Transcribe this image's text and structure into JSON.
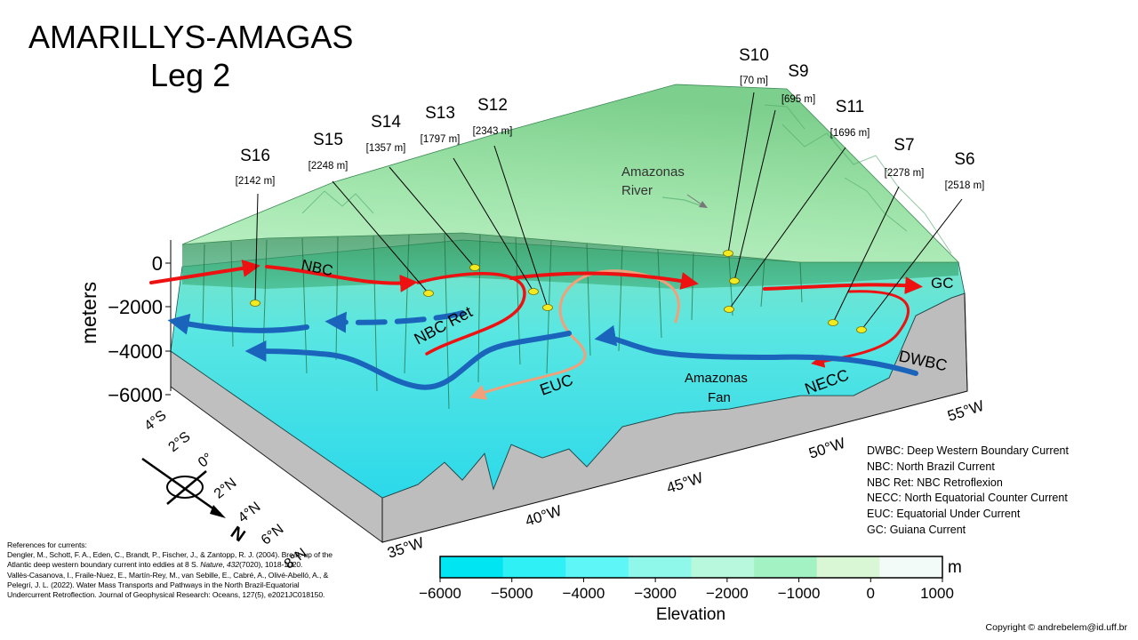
{
  "title": {
    "line1": "AMARILLYS-AMAGAS",
    "line2": "Leg 2"
  },
  "stations": [
    {
      "name": "S16",
      "depth": "[2142 m]"
    },
    {
      "name": "S15",
      "depth": "[2248 m]"
    },
    {
      "name": "S14",
      "depth": "[1357 m]"
    },
    {
      "name": "S13",
      "depth": "[1797 m]"
    },
    {
      "name": "S12",
      "depth": "[2343 m]"
    },
    {
      "name": "S10",
      "depth": "[70 m]"
    },
    {
      "name": "S9",
      "depth": "[695 m]"
    },
    {
      "name": "S11",
      "depth": "[1696 m]"
    },
    {
      "name": "S7",
      "depth": "[2278 m]"
    },
    {
      "name": "S6",
      "depth": "[2518 m]"
    }
  ],
  "map_labels": {
    "river_line1": "Amazonas",
    "river_line2": "River",
    "fan_line1": "Amazonas",
    "fan_line2": "Fan"
  },
  "current_labels": {
    "nbc": "NBC",
    "nbc_ret": "NBC Ret",
    "euc": "EUC",
    "necc": "NECC",
    "dwbc": "DWBC",
    "gc": "GC"
  },
  "depth_axis": {
    "label": "meters",
    "ticks": [
      "0",
      "−2000",
      "−4000",
      "−6000"
    ]
  },
  "lat_ticks": [
    "4°S",
    "2°S",
    "0°",
    "2°N",
    "4°N",
    "6°N",
    "8°N"
  ],
  "lon_ticks": [
    "35°W",
    "40°W",
    "45°W",
    "50°W",
    "55°W"
  ],
  "north_label": "N",
  "legend": [
    "DWBC: Deep Western Boundary Current",
    "NBC: North Brazil Current",
    "NBC Ret: NBC Retroflexion",
    "NECC: North Equatorial Counter Current",
    "EUC:  Equatorial Under Current",
    "GC: Guiana Current"
  ],
  "references": {
    "heading": "References for currents:",
    "ref1_a": "Dengler, M., Schott, F. A., Eden, C., Brandt, P., Fischer, J., & Zantopp, R. J. (2004). Break-up of the Atlantic deep western boundary current into eddies at 8 S.",
    "ref1_journal": "Nature",
    "ref1_vol": "432",
    "ref1_b": "(7020), 1018-1020.",
    "ref2": "Vallès-Casanova, I., Fraile-Nuez, E., Martín-Rey, M., van Sebille, E., Cabré, A., Olivé-Abelló, A., & Pelegrí, J. L. (2022). Water Mass Transports and Pathways in the North Brazil-Equatorial Undercurrent Retroflection. Journal of Geophysical Research: Oceans, 127(5), e2021JC018150."
  },
  "colorbar": {
    "unit": "m",
    "label": "Elevation",
    "ticks": [
      "−6000",
      "−5000",
      "−4000",
      "−3000",
      "−2000",
      "−1000",
      "0",
      "1000"
    ],
    "colors": [
      "#00e5f2",
      "#2ef0f5",
      "#5ef6f6",
      "#8ff8ea",
      "#b8f8dc",
      "#a3f2c4",
      "#d9f7d5",
      "#f2fbf7"
    ]
  },
  "copyright": "Copyright © andrebelem@id.uff.br",
  "colors": {
    "warm_current": "#ee1111",
    "deep_current": "#1a64bb",
    "euc": "#f2a07a",
    "station_marker": "#f3ea20"
  }
}
